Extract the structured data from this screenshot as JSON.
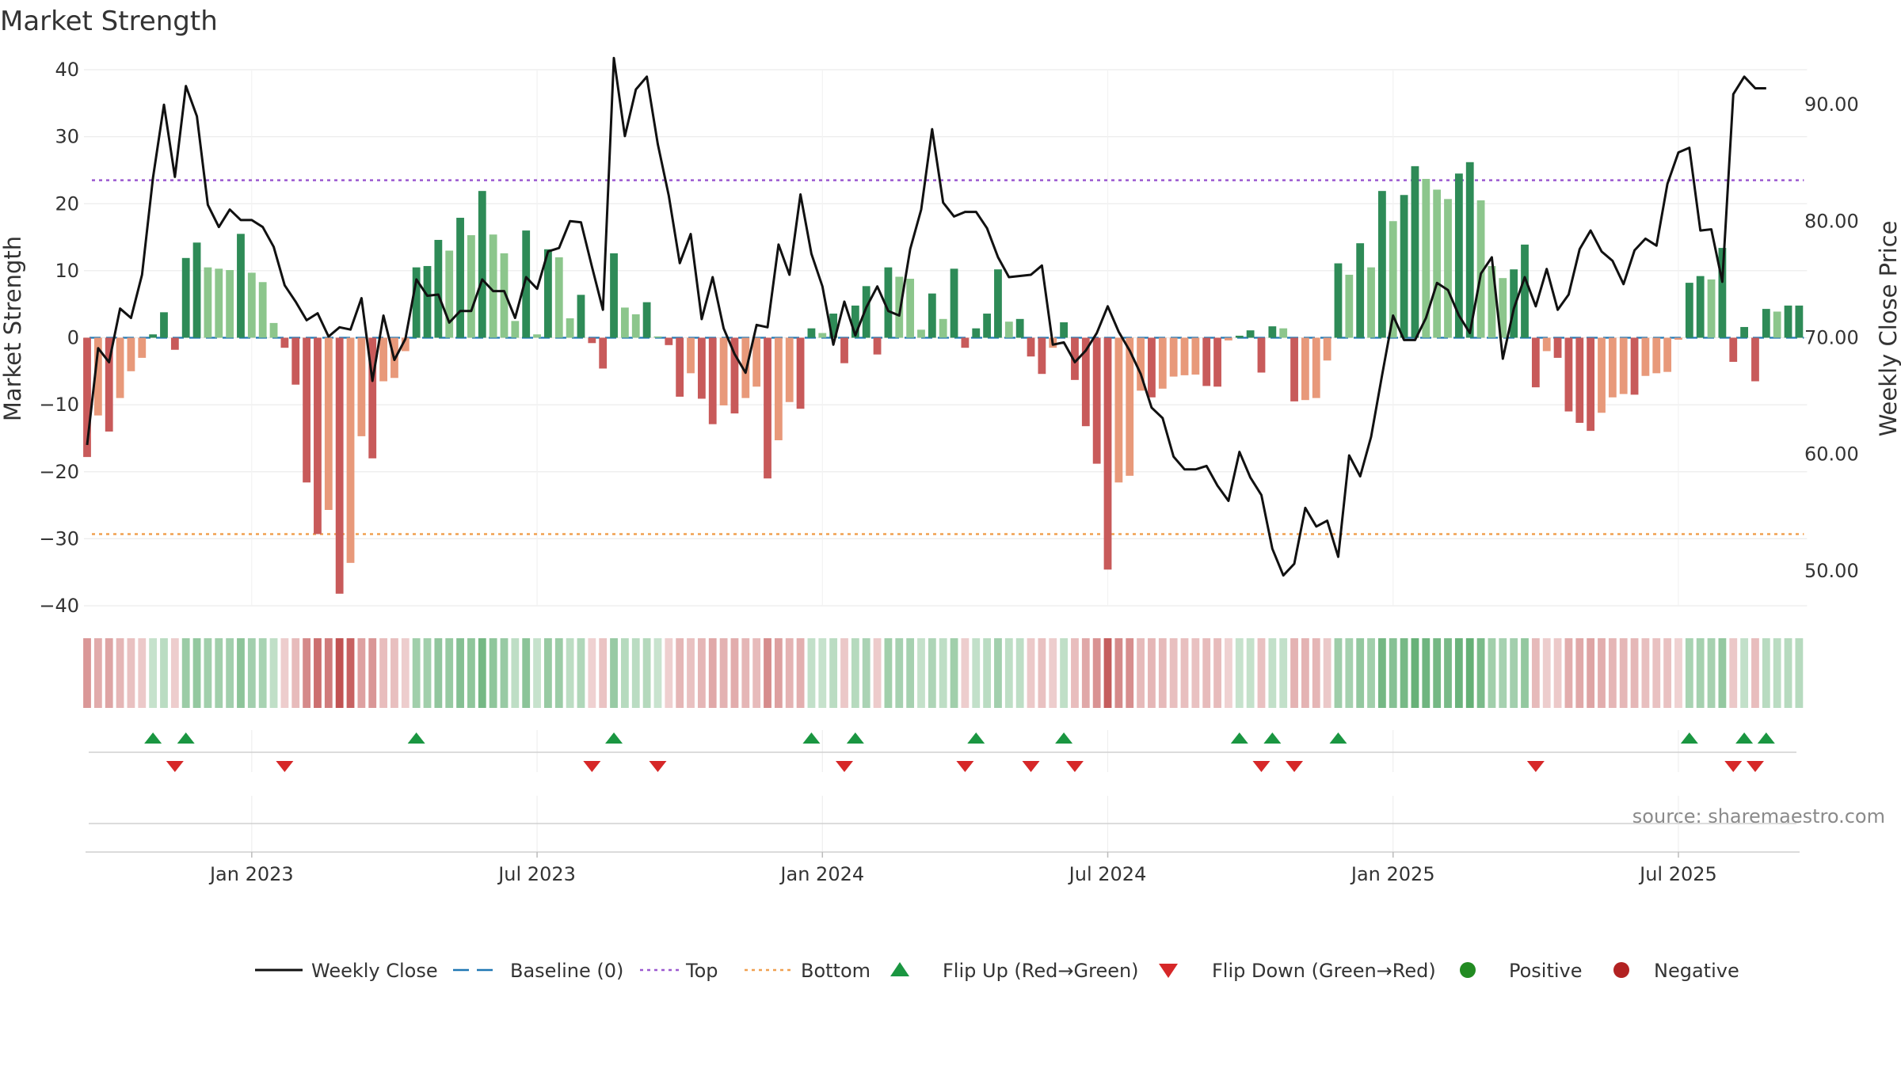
{
  "chart_data": {
    "type": "bar",
    "title": "Market Strength",
    "ylabel_left": "Market Strength",
    "ylabel_right": "Weekly Close Price",
    "ylim_left": [
      -40,
      40
    ],
    "ylim_right": [
      47,
      93
    ],
    "yticks_left": [
      "40",
      "30",
      "20",
      "10",
      "0",
      "−10",
      "−20",
      "−30",
      "−40"
    ],
    "yticks_right": [
      "90.00",
      "80.00",
      "70.00",
      "60.00",
      "50.00"
    ],
    "x_tick_labels": [
      "Jan 2023",
      "Jul 2023",
      "Jan 2024",
      "Jul 2024",
      "Jan 2025",
      "Jul 2025"
    ],
    "x_tick_weeks": [
      15,
      41,
      67,
      93,
      119,
      145
    ],
    "top_threshold": 23.5,
    "bottom_threshold": -29.3,
    "source": "source: sharemaestro.com",
    "colors": {
      "green_dark": "#2e8b57",
      "green_light": "#8cc68c",
      "red_dark": "#c85a5a",
      "red_light": "#e8997a",
      "top_line": "#9b59d0",
      "bottom_line": "#f0a050",
      "baseline": "#1f77b4",
      "close_line": "#111111",
      "flip_up": "#1a9641",
      "flip_down": "#d62728",
      "positive": "#228b22",
      "negative": "#b22222"
    },
    "strength": [
      -17.8,
      -11.6,
      -14.0,
      -9.0,
      -5.0,
      -3.0,
      0.5,
      3.8,
      -1.8,
      11.9,
      14.2,
      10.5,
      10.3,
      10.1,
      15.5,
      9.7,
      8.3,
      2.2,
      -1.5,
      -7.0,
      -21.6,
      -29.3,
      -25.7,
      -38.2,
      -33.6,
      -14.7,
      -18.0,
      -6.5,
      -6.0,
      -2.0,
      10.5,
      10.7,
      14.6,
      13.0,
      17.9,
      15.3,
      21.9,
      15.4,
      12.6,
      2.5,
      16.0,
      0.5,
      13.2,
      12.0,
      2.9,
      6.4,
      -0.8,
      -4.6,
      12.6,
      4.5,
      3.5,
      5.3,
      0.2,
      -1.1,
      -8.8,
      -5.3,
      -9.1,
      -12.9,
      -10.1,
      -11.3,
      -9.0,
      -7.3,
      -21.0,
      -15.3,
      -9.6,
      -10.6,
      1.4,
      0.7,
      3.6,
      -3.8,
      4.8,
      7.7,
      -2.5,
      10.5,
      9.1,
      8.8,
      1.2,
      6.6,
      2.8,
      10.3,
      -1.5,
      1.4,
      3.6,
      10.2,
      2.4,
      2.8,
      -2.8,
      -5.4,
      -1.5,
      2.3,
      -6.3,
      -13.2,
      -18.8,
      -34.6,
      -21.6,
      -20.6,
      -7.9,
      -8.9,
      -7.6,
      -5.8,
      -5.6,
      -5.5,
      -7.2,
      -7.3,
      -0.4,
      0.3,
      1.1,
      -5.2,
      1.7,
      1.4,
      -9.5,
      -9.3,
      -9.0,
      -3.4,
      11.1,
      9.4,
      14.1,
      10.5,
      21.9,
      17.4,
      21.3,
      25.6,
      23.7,
      22.1,
      20.7,
      24.5,
      26.2,
      20.5,
      10.7,
      8.9,
      10.2,
      13.9,
      -7.4,
      -2.0,
      -3.0,
      -11.0,
      -12.7,
      -13.9,
      -11.2,
      -8.9,
      -8.4,
      -8.5,
      -5.7,
      -5.3,
      -5.1,
      -0.3,
      8.2,
      9.2,
      8.7,
      13.4,
      -3.6,
      1.6,
      -6.5,
      4.3,
      3.9,
      4.8,
      4.8
    ],
    "weekly_close": [
      60.8,
      69.1,
      67.9,
      72.5,
      71.7,
      75.4,
      83.7,
      90.0,
      83.8,
      91.6,
      89.0,
      81.4,
      79.5,
      81.0,
      80.1,
      80.1,
      79.5,
      77.8,
      74.5,
      73.1,
      71.5,
      72.1,
      70.1,
      70.9,
      70.7,
      73.4,
      66.3,
      71.9,
      68.1,
      69.9,
      75.0,
      73.6,
      73.7,
      71.3,
      72.3,
      72.3,
      75.0,
      74.0,
      74.0,
      71.7,
      75.2,
      74.2,
      77.4,
      77.7,
      80.0,
      79.9,
      76.1,
      72.4,
      94.0,
      87.3,
      91.3,
      92.4,
      86.6,
      82.2,
      76.4,
      78.9,
      71.6,
      75.2,
      70.8,
      68.6,
      67.0,
      71.1,
      70.9,
      78.0,
      75.4,
      82.3,
      77.2,
      74.4,
      69.4,
      73.1,
      70.2,
      72.6,
      74.4,
      72.3,
      71.9,
      77.6,
      81.0,
      87.9,
      81.6,
      80.4,
      80.8,
      80.8,
      79.4,
      76.9,
      75.2,
      75.3,
      75.4,
      76.2,
      69.4,
      69.6,
      67.9,
      68.9,
      70.4,
      72.7,
      70.5,
      68.9,
      66.9,
      64.0,
      63.1,
      59.8,
      58.7,
      58.7,
      59.0,
      57.3,
      56.0,
      60.2,
      58.0,
      56.5,
      51.9,
      49.6,
      50.6,
      55.4,
      53.8,
      54.3,
      51.2,
      59.9,
      58.1,
      61.5,
      66.8,
      71.9,
      69.8,
      69.8,
      71.7,
      74.7,
      74.1,
      71.9,
      70.4,
      75.5,
      76.9,
      68.2,
      72.5,
      75.2,
      72.7,
      75.9,
      72.4,
      73.7,
      77.6,
      79.2,
      77.4,
      76.6,
      74.6,
      77.5,
      78.5,
      77.9,
      83.2,
      85.9,
      86.3,
      79.2,
      79.3,
      74.8,
      90.9,
      92.4,
      91.4,
      91.4
    ],
    "flip_up_weeks": [
      6,
      9,
      30,
      48,
      66,
      70,
      81,
      89,
      105,
      108,
      114,
      146,
      151,
      153
    ],
    "flip_down_weeks": [
      8,
      18,
      46,
      52,
      69,
      80,
      86,
      90,
      107,
      110,
      132,
      150,
      152
    ],
    "legend": [
      {
        "label": "Weekly Close",
        "type": "line"
      },
      {
        "label": "Baseline (0)",
        "type": "dash"
      },
      {
        "label": "Top",
        "type": "dot-purple"
      },
      {
        "label": "Bottom",
        "type": "dot-orange"
      },
      {
        "label": "Flip Up (Red→Green)",
        "type": "tri-up"
      },
      {
        "label": "Flip Down (Green→Red)",
        "type": "tri-down"
      },
      {
        "label": "Positive",
        "type": "circle-pos"
      },
      {
        "label": "Negative",
        "type": "circle-neg"
      }
    ]
  }
}
